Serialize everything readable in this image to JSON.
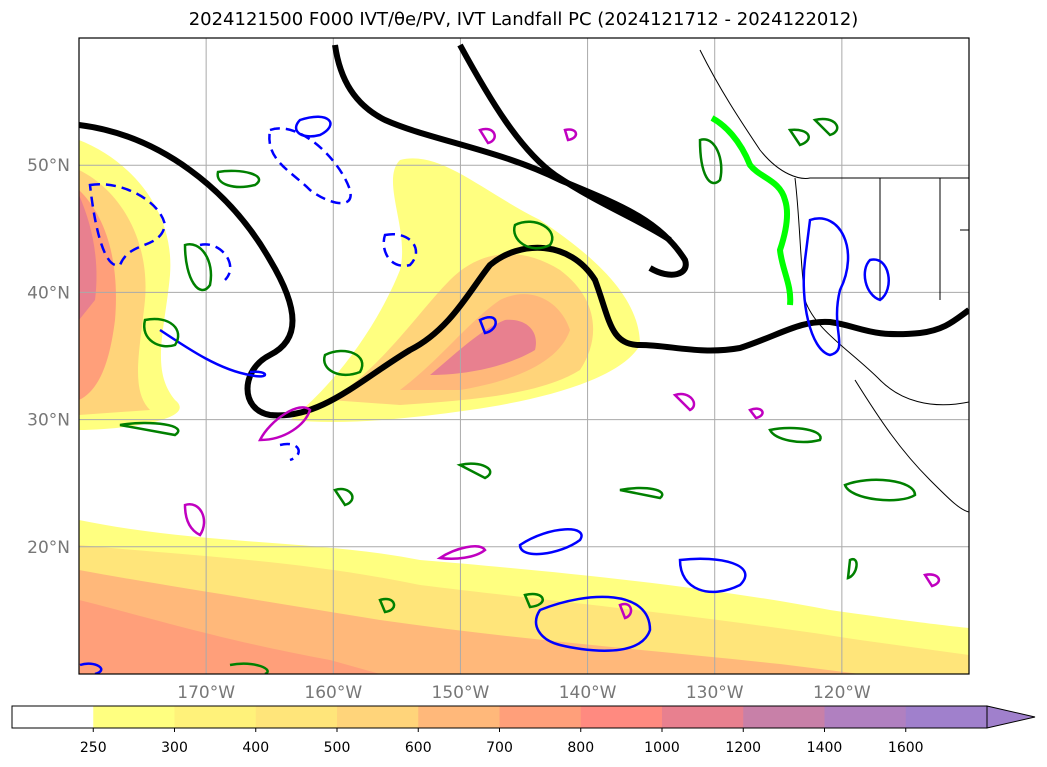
{
  "title": "2024121500 F000 IVT/θe/PV, IVT Landfall PC (2024121712 - 2024122012)",
  "map": {
    "projection": "PlateCarree",
    "extent": {
      "lon_min": -180,
      "lon_max": -110,
      "lat_min": 10,
      "lat_max": 60
    },
    "lat_ticks": [
      {
        "value": 20,
        "label": "20°N"
      },
      {
        "value": 30,
        "label": "30°N"
      },
      {
        "value": 40,
        "label": "40°N"
      },
      {
        "value": 50,
        "label": "50°N"
      }
    ],
    "lon_ticks": [
      {
        "value": -170,
        "label": "170°W"
      },
      {
        "value": -160,
        "label": "160°W"
      },
      {
        "value": -150,
        "label": "150°W"
      },
      {
        "value": -140,
        "label": "140°W"
      },
      {
        "value": -130,
        "label": "130°W"
      },
      {
        "value": -120,
        "label": "120°W"
      }
    ],
    "grid": true
  },
  "colorbar": {
    "levels": [
      "250",
      "300",
      "400",
      "500",
      "600",
      "700",
      "800",
      "1000",
      "1200",
      "1400",
      "1600"
    ],
    "colors": [
      "#ffffff",
      "#ffff80",
      "#fff27a",
      "#ffe57a",
      "#ffd47a",
      "#ffb87a",
      "#ff9f7a",
      "#ff8a80",
      "#e8808f",
      "#c880a8",
      "#b080c0",
      "#a080cc"
    ],
    "extend": "max"
  },
  "chart_data": {
    "type": "heatmap",
    "field": "IVT",
    "regions": [
      {
        "name": "subtropical band",
        "lon": [
          -180,
          -110
        ],
        "lat": [
          10,
          22
        ],
        "ivt": 500
      },
      {
        "name": "central pacific plume",
        "lon": [
          -160,
          -136
        ],
        "lat": [
          28,
          45
        ],
        "ivt": 800
      },
      {
        "name": "western plume",
        "lon": [
          -180,
          -170
        ],
        "lat": [
          28,
          52
        ],
        "ivt": 1000
      }
    ],
    "contours": [
      {
        "field": "theta_e",
        "color": "#000000"
      },
      {
        "field": "PV",
        "color": "#0000ff"
      },
      {
        "field": "PV",
        "color": "#008000"
      },
      {
        "field": "PV",
        "color": "#c000c0"
      },
      {
        "field": "IVT Landfall PC",
        "color": "#00ff00"
      }
    ]
  }
}
